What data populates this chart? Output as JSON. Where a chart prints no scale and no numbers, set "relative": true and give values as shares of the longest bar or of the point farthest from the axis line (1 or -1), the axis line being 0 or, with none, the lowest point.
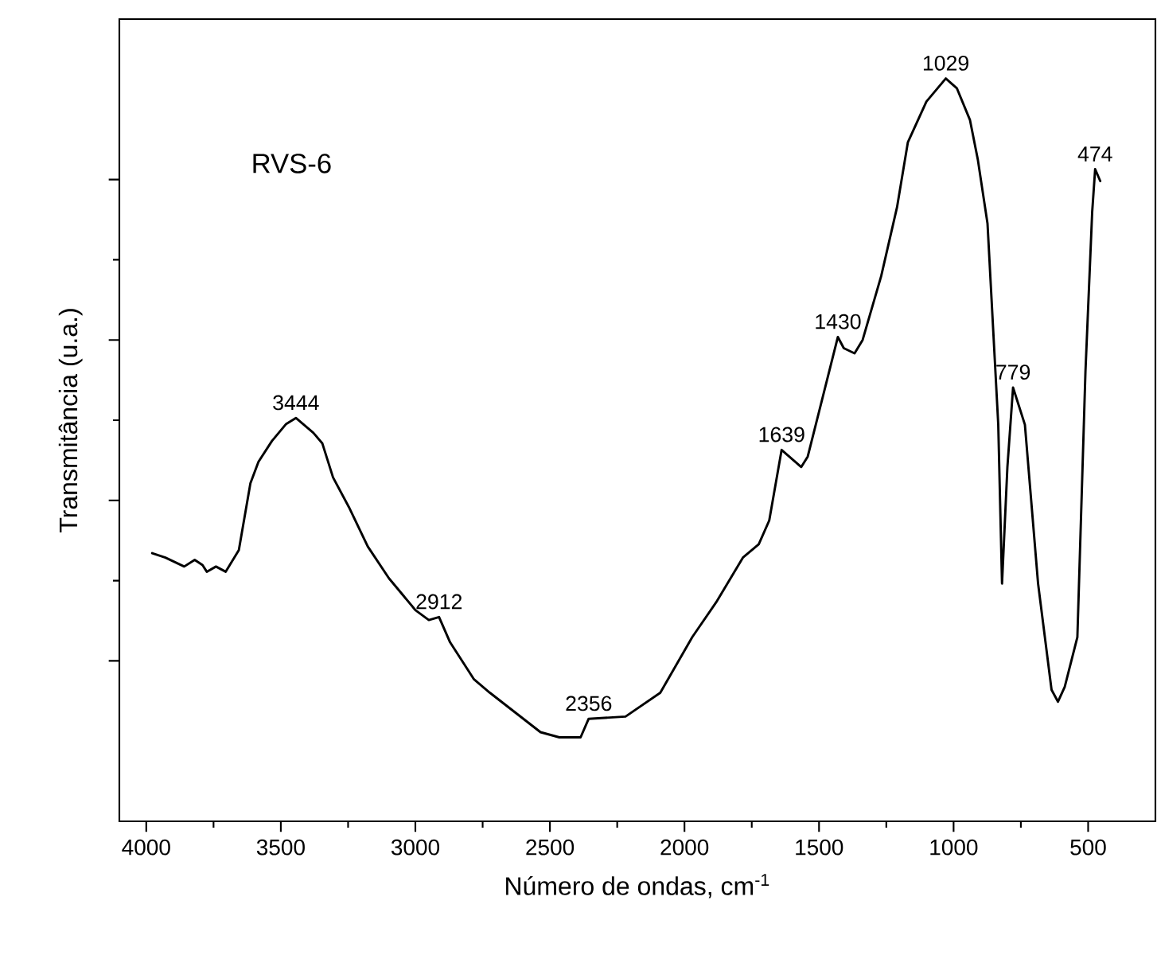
{
  "chart_data": {
    "type": "line",
    "relative": true,
    "xlabel": "Número de ondas, cm$^{-1}$",
    "ylabel": "Transmitância (u.a.)",
    "xlim": [
      4100,
      250
    ],
    "xticks": [
      4000,
      3500,
      3000,
      2500,
      2000,
      1500,
      1000,
      500
    ],
    "color": "#000000",
    "x": [
      3978,
      3929,
      3859,
      3820,
      3791,
      3775,
      3741,
      3705,
      3656,
      3613,
      3583,
      3533,
      3480,
      3444,
      3379,
      3346,
      3306,
      3247,
      3177,
      3098,
      2999,
      2950,
      2912,
      2871,
      2782,
      2723,
      2535,
      2465,
      2386,
      2356,
      2219,
      2090,
      1971,
      1882,
      1783,
      1724,
      1685,
      1639,
      1566,
      1542,
      1430,
      1408,
      1368,
      1338,
      1269,
      1210,
      1170,
      1101,
      1029,
      988,
      939,
      910,
      874,
      834,
      820,
      800,
      779,
      735,
      686,
      636,
      612,
      587,
      540,
      510,
      485,
      474,
      455
    ],
    "values": [
      0.361,
      0.355,
      0.343,
      0.352,
      0.345,
      0.336,
      0.343,
      0.336,
      0.365,
      0.455,
      0.484,
      0.512,
      0.535,
      0.543,
      0.523,
      0.509,
      0.463,
      0.423,
      0.37,
      0.327,
      0.284,
      0.271,
      0.275,
      0.241,
      0.191,
      0.173,
      0.12,
      0.113,
      0.113,
      0.138,
      0.141,
      0.173,
      0.248,
      0.295,
      0.355,
      0.373,
      0.405,
      0.5,
      0.477,
      0.491,
      0.652,
      0.637,
      0.63,
      0.648,
      0.734,
      0.827,
      0.914,
      0.969,
      1.0,
      0.987,
      0.944,
      0.891,
      0.805,
      0.534,
      0.32,
      0.477,
      0.584,
      0.534,
      0.32,
      0.177,
      0.161,
      0.181,
      0.248,
      0.605,
      0.82,
      0.878,
      0.862
    ],
    "annotations": [
      "RVS-6",
      {
        "text": "3444",
        "x": 3444,
        "y": 0.543
      },
      {
        "text": "2912",
        "x": 2912,
        "y": 0.275
      },
      {
        "text": "2356",
        "x": 2356,
        "y": 0.138
      },
      {
        "text": "1639",
        "x": 1639,
        "y": 0.5
      },
      {
        "text": "1430",
        "x": 1430,
        "y": 0.652
      },
      {
        "text": "1029",
        "x": 1029,
        "y": 1.0
      },
      {
        "text": "779",
        "x": 779,
        "y": 0.584
      },
      {
        "text": "474",
        "x": 474,
        "y": 0.878
      }
    ]
  }
}
